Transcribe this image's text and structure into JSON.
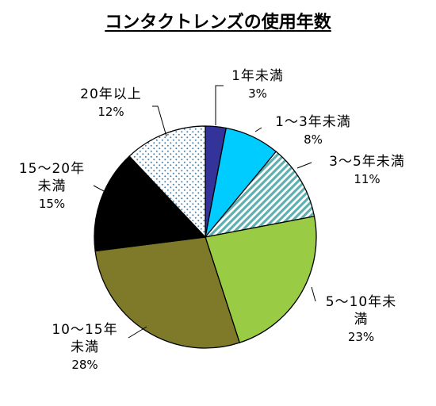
{
  "chart_data": {
    "type": "pie",
    "title": "コンタクトレンズの使用年数",
    "categories": [
      "1年未満",
      "1～3年未満",
      "3～5年未満",
      "5～10年未満",
      "10～15年未満",
      "15～20年未満",
      "20年以上"
    ],
    "values": [
      3,
      8,
      11,
      23,
      28,
      15,
      12
    ],
    "value_labels": [
      "3%",
      "8%",
      "11%",
      "23%",
      "28%",
      "15%",
      "12%"
    ],
    "colors": [
      "#333399",
      "#00CCFF",
      "#99CCCC",
      "#99CC44",
      "#7F7A29",
      "#000000",
      "#FFFFFF"
    ],
    "patterns": [
      "solid",
      "solid",
      "diagonal-hatch",
      "solid",
      "solid",
      "solid",
      "dotted"
    ],
    "start_angle": "12 o'clock",
    "direction": "clockwise",
    "legend": "none"
  }
}
